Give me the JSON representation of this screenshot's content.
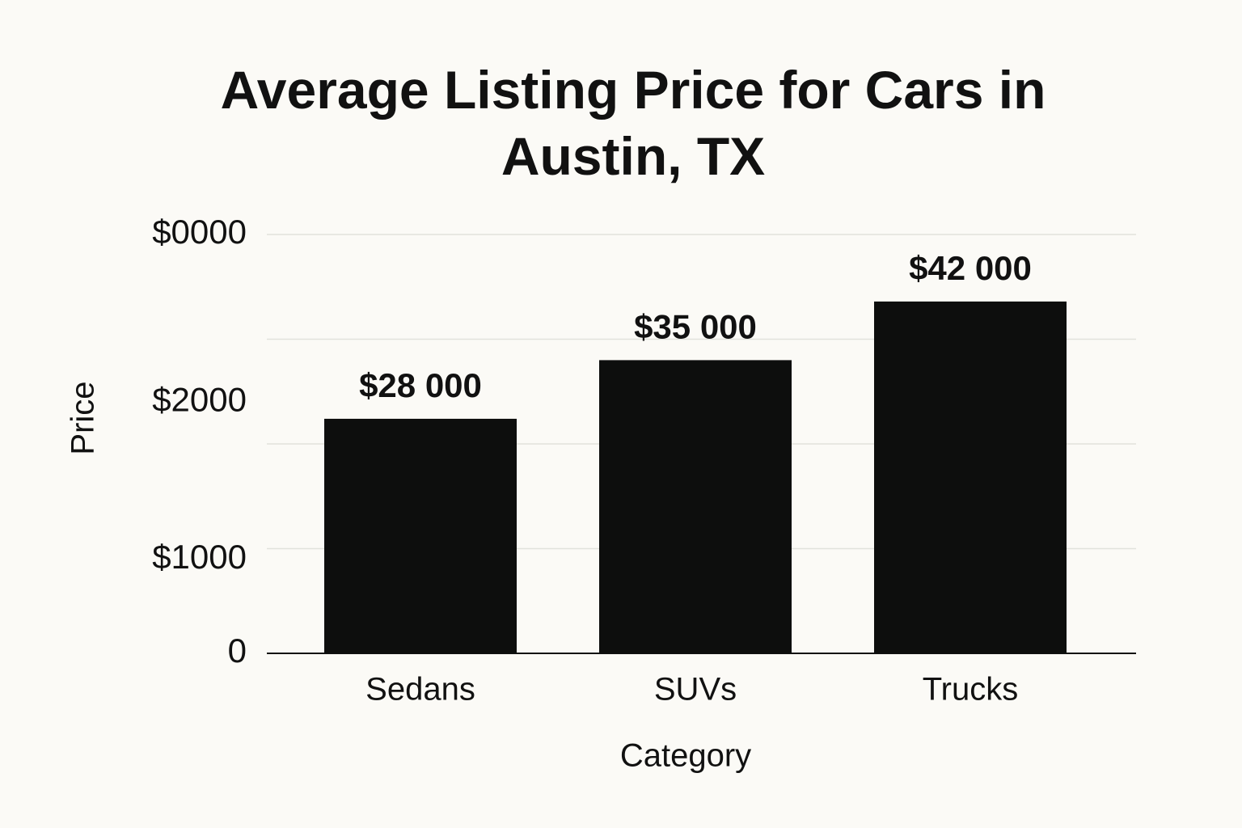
{
  "chart_data": {
    "type": "bar",
    "title": "Average Listing Price for Cars in Austin, TX",
    "x_label": "Category",
    "y_label": "Price",
    "categories": [
      "Sedans",
      "SUVs",
      "Trucks"
    ],
    "values": [
      28000,
      35000,
      42000
    ],
    "value_labels": [
      "$28 000",
      "$35 000",
      "$42 000"
    ],
    "color": "#0d0e0d",
    "ylim": [
      0,
      50000
    ],
    "yticks": [
      0,
      {
        "value": 11200,
        "label": "$1000"
      },
      {
        "value": 30000,
        "label": "$2000"
      },
      {
        "value": 50000,
        "label": "$0000"
      }
    ],
    "ygrid": [
      12500,
      25000,
      37500,
      50000
    ],
    "grid": true
  }
}
